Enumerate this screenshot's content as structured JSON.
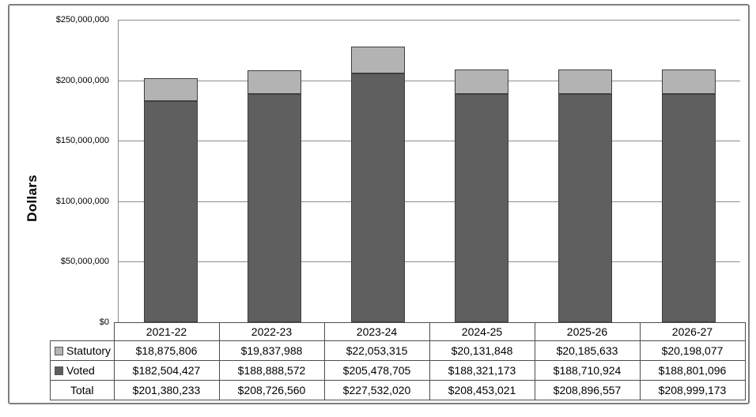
{
  "chart_data": {
    "type": "bar",
    "stacked": true,
    "title": "",
    "ylabel": "Dollars",
    "xlabel": "",
    "ylim": [
      0,
      250000000
    ],
    "grid": true,
    "legend_position": "table-rows-left",
    "categories": [
      "2021-22",
      "2022-23",
      "2023-24",
      "2024-25",
      "2025-26",
      "2026-27"
    ],
    "yticks": [
      {
        "value": 0,
        "label": "$0"
      },
      {
        "value": 50000000,
        "label": "$50,000,000"
      },
      {
        "value": 100000000,
        "label": "$100,000,000"
      },
      {
        "value": 150000000,
        "label": "$150,000,000"
      },
      {
        "value": 200000000,
        "label": "$200,000,000"
      },
      {
        "value": 250000000,
        "label": "$250,000,000"
      }
    ],
    "series": [
      {
        "name": "Statutory",
        "color": "#b3b3b3",
        "stack_order": "top",
        "values": [
          18875806,
          19837988,
          22053315,
          20131848,
          20185633,
          20198077
        ]
      },
      {
        "name": "Voted",
        "color": "#5f5f5f",
        "stack_order": "bottom",
        "values": [
          182504427,
          188888572,
          205478705,
          188321173,
          188710924,
          188801096
        ]
      }
    ],
    "totals": [
      201380233,
      208726560,
      227532020,
      208453021,
      208896557,
      208999173
    ]
  },
  "table": {
    "rows": [
      {
        "label": "Statutory",
        "swatch_color": "#b3b3b3",
        "values": [
          "$18,875,806",
          "$19,837,988",
          "$22,053,315",
          "$20,131,848",
          "$20,185,633",
          "$20,198,077"
        ]
      },
      {
        "label": "Voted",
        "swatch_color": "#5f5f5f",
        "values": [
          "$182,504,427",
          "$188,888,572",
          "$205,478,705",
          "$188,321,173",
          "$188,710,924",
          "$188,801,096"
        ]
      },
      {
        "label": "Total",
        "swatch_color": null,
        "values": [
          "$201,380,233",
          "$208,726,560",
          "$227,532,020",
          "$208,453,021",
          "$208,896,557",
          "$208,999,173"
        ]
      }
    ]
  },
  "colors": {
    "statutory_fill": "#b3b3b3",
    "voted_fill": "#5f5f5f",
    "bar_border": "#3f3f3f",
    "gridline": "#8c8c8c",
    "axis_line": "#8c8c8c",
    "table_border": "#4d4d4d",
    "figure_border": "#7f7f7f"
  }
}
